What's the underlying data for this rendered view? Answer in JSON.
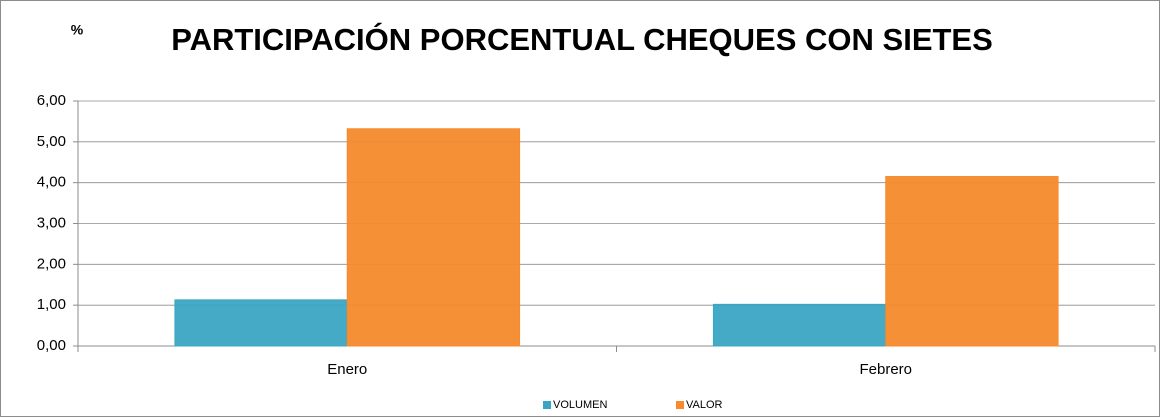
{
  "chart_data": {
    "type": "bar",
    "title": "PARTICIPACIÓN PORCENTUAL CHEQUES CON SIETES",
    "y_label": "%",
    "categories": [
      "Enero",
      "Febrero"
    ],
    "series": [
      {
        "name": "VOLUMEN",
        "color": "#3aa5c3",
        "values": [
          1.13,
          1.02
        ]
      },
      {
        "name": "VALOR",
        "color": "#f68a2c",
        "values": [
          5.32,
          4.15
        ]
      }
    ],
    "ylim": [
      0,
      6
    ],
    "yticks": [
      {
        "value": 0,
        "label": "0,00"
      },
      {
        "value": 1,
        "label": "1,00"
      },
      {
        "value": 2,
        "label": "2,00"
      },
      {
        "value": 3,
        "label": "3,00"
      },
      {
        "value": 4,
        "label": "4,00"
      },
      {
        "value": 5,
        "label": "5,00"
      },
      {
        "value": 6,
        "label": "6,00"
      }
    ],
    "grid": true,
    "legend": "bottom"
  }
}
